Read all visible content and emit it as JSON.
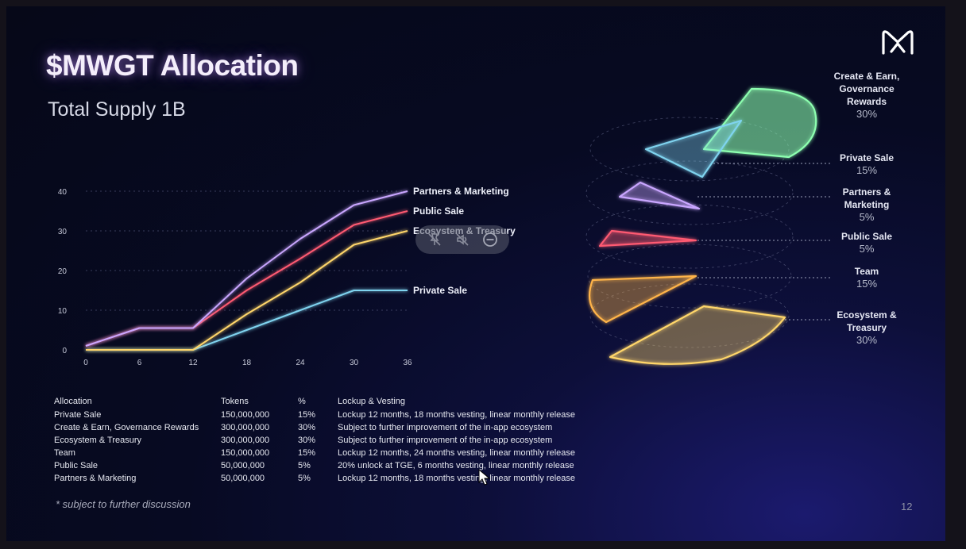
{
  "slide": {
    "title": "$MWGT Allocation",
    "subtitle": "Total Supply 1B",
    "page_number": "12",
    "note": "* subject to further discussion"
  },
  "colors": {
    "partners": "#c9a6ff",
    "public": "#ff5a72",
    "ecosystem": "#ffd66b",
    "private": "#7fd3ef",
    "create": "#8dffb0",
    "team": "#ffb44a"
  },
  "chart_data": {
    "type": "line",
    "x": [
      0,
      6,
      12,
      18,
      24,
      30,
      36
    ],
    "xticks": [
      "0",
      "6",
      "12",
      "18",
      "24",
      "30",
      "36"
    ],
    "yticks": [
      "0",
      "10",
      "20",
      "30",
      "40"
    ],
    "xlim": [
      0,
      36
    ],
    "ylim": [
      0,
      40
    ],
    "grid": true,
    "series": [
      {
        "name": "Partners & Marketing",
        "color": "#c9a6ff",
        "values": [
          1,
          5.5,
          5.5,
          18,
          28,
          36.5,
          40
        ]
      },
      {
        "name": "Public Sale",
        "color": "#ff5a72",
        "values": [
          1,
          5.5,
          5.5,
          15,
          23,
          31.5,
          35
        ]
      },
      {
        "name": "Ecosystem & Treasury",
        "color": "#ffd66b",
        "values": [
          0,
          0,
          0,
          9,
          17,
          26.5,
          30
        ]
      },
      {
        "name": "Private Sale",
        "color": "#7fd3ef",
        "values": [
          0,
          0,
          0,
          5,
          10,
          15,
          15
        ]
      }
    ]
  },
  "pie": {
    "slices": [
      {
        "name": "Create & Earn, Governance Rewards",
        "lines": [
          "Create & Earn,",
          "Governance",
          "Rewards"
        ],
        "percent": "30%",
        "color": "#8dffb0"
      },
      {
        "name": "Private Sale",
        "lines": [
          "Private Sale"
        ],
        "percent": "15%",
        "color": "#7fd3ef"
      },
      {
        "name": "Partners & Marketing",
        "lines": [
          "Partners &",
          "Marketing"
        ],
        "percent": "5%",
        "color": "#c9a6ff"
      },
      {
        "name": "Public Sale",
        "lines": [
          "Public Sale"
        ],
        "percent": "5%",
        "color": "#ff5a72"
      },
      {
        "name": "Team",
        "lines": [
          "Team"
        ],
        "percent": "15%",
        "color": "#ffb44a"
      },
      {
        "name": "Ecosystem & Treasury",
        "lines": [
          "Ecosystem &",
          "Treasury"
        ],
        "percent": "30%",
        "color": "#ffd66b"
      }
    ]
  },
  "table": {
    "headers": [
      "Allocation",
      "Tokens",
      "%",
      "Lockup & Vesting"
    ],
    "rows": [
      [
        "Private Sale",
        "150,000,000",
        "15%",
        "Lockup 12 months, 18 months vesting, linear monthly release"
      ],
      [
        "Create & Earn, Governance Rewards",
        "300,000,000",
        "30%",
        "Subject to further improvement of the in-app ecosystem"
      ],
      [
        "Ecosystem & Treasury",
        "300,000,000",
        "30%",
        "Subject to further improvement of the in-app ecosystem"
      ],
      [
        "Team",
        "150,000,000",
        "15%",
        "Lockup 12 months, 24 months vesting, linear monthly release"
      ],
      [
        "Public Sale",
        "50,000,000",
        "5%",
        "20% unlock at TGE, 6 months vesting, linear monthly release"
      ],
      [
        "Partners & Marketing",
        "50,000,000",
        "5%",
        "Lockup 12 months, 18 months vesting, linear monthly release"
      ]
    ]
  },
  "toolbar": {
    "icons": [
      "unpin-icon",
      "mute-icon",
      "remove-icon"
    ]
  }
}
